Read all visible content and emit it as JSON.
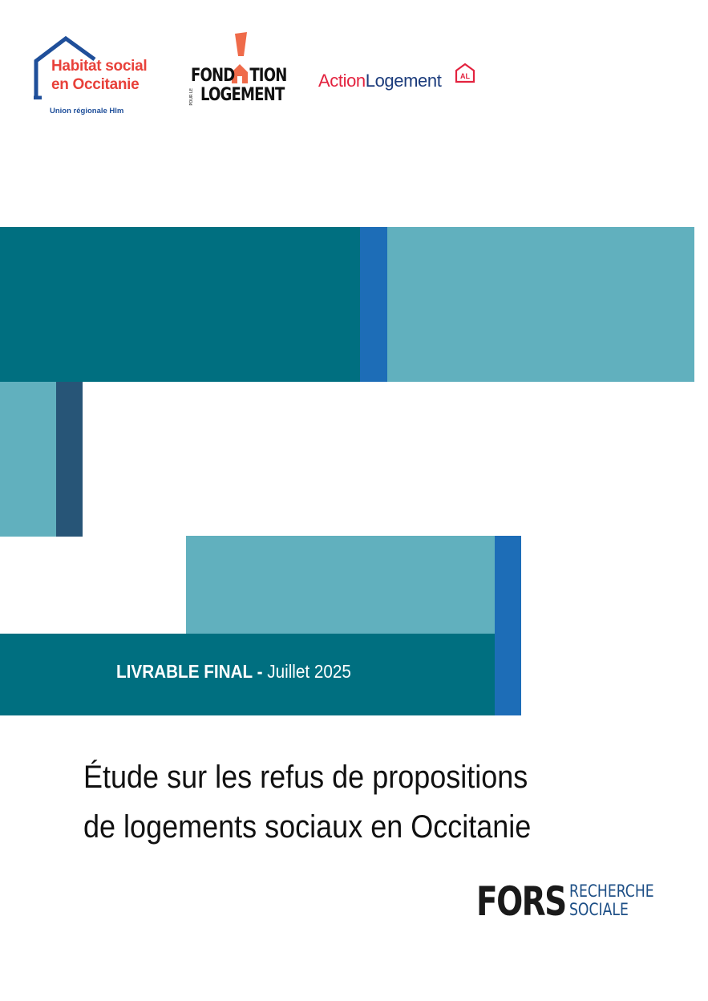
{
  "logos": {
    "habitat_social": {
      "line1": "Habitat social",
      "line2": "en Occitanie",
      "subtitle": "Union régionale Hlm",
      "icon": "house-outline-icon"
    },
    "fondation": {
      "line1": "FOND",
      "line1_end": "TION",
      "line2": "LOGEMENT",
      "small": "POUR LE",
      "icon": "exclamation-house-icon"
    },
    "action_logement": {
      "part1": "Action",
      "part2": "Logement",
      "badge": "AL",
      "icon": "al-house-icon"
    },
    "fors": {
      "main": "FORS",
      "sub1": "RECHERCHE",
      "sub2": "SOCIALE"
    }
  },
  "deliverable": {
    "label": "LIVRABLE FINAL",
    "separator": " - ",
    "date": "Juillet 2025"
  },
  "title": {
    "line1": "Étude sur les refus de propositions",
    "line2": "de logements sociaux en Occitanie"
  },
  "colors": {
    "teal_dark": "#006f80",
    "teal_light": "#61b0be",
    "blue": "#1d6db7",
    "navy": "#275577",
    "red": "#e8413a",
    "orange": "#ef6b4a"
  }
}
